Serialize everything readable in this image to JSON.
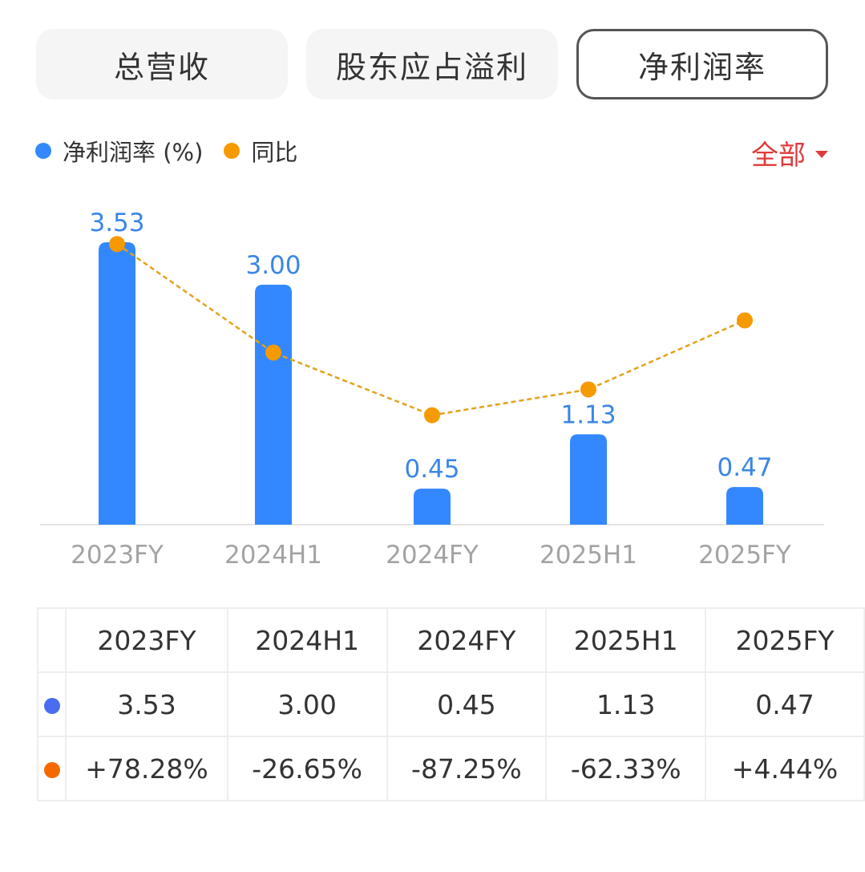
{
  "tabs": [
    {
      "label": "总营收",
      "active": false
    },
    {
      "label": "股东应占溢利",
      "active": false
    },
    {
      "label": "净利润率",
      "active": true
    }
  ],
  "legend": [
    {
      "label": "净利润率 (%)",
      "color": "#3388ff"
    },
    {
      "label": "同比",
      "color": "#f59a00"
    }
  ],
  "filter": {
    "label": "全部",
    "icon": "caret-down-icon"
  },
  "chart_data": {
    "type": "bar",
    "categories": [
      "2023FY",
      "2024H1",
      "2024FY",
      "2025H1",
      "2025FY"
    ],
    "series": [
      {
        "name": "净利润率 (%)",
        "type": "bar",
        "values": [
          3.53,
          3.0,
          0.45,
          1.13,
          0.47
        ],
        "labels": [
          "3.53",
          "3.00",
          "0.45",
          "1.13",
          "0.47"
        ],
        "color": "#3388ff"
      },
      {
        "name": "同比",
        "type": "line",
        "values": [
          78.28,
          -26.65,
          -87.25,
          -62.33,
          4.44
        ],
        "color": "#f59a00",
        "style": "dashed"
      }
    ],
    "ylim": [
      0,
      3.53
    ],
    "grid": false,
    "legend": "top-left"
  },
  "table": {
    "headers": [
      "2023FY",
      "2024H1",
      "2024FY",
      "2025H1",
      "2025FY"
    ],
    "rows": [
      {
        "dot_color": "#4a6cf0",
        "cells": [
          {
            "text": "3.53",
            "tone": ""
          },
          {
            "text": "3.00",
            "tone": ""
          },
          {
            "text": "0.45",
            "tone": ""
          },
          {
            "text": "1.13",
            "tone": ""
          },
          {
            "text": "0.47",
            "tone": ""
          }
        ]
      },
      {
        "dot_color": "#f56a00",
        "cells": [
          {
            "text": "+78.28%",
            "tone": "pos"
          },
          {
            "text": "-26.65%",
            "tone": "neg"
          },
          {
            "text": "-87.25%",
            "tone": "neg"
          },
          {
            "text": "-62.33%",
            "tone": "neg"
          },
          {
            "text": "+4.44%",
            "tone": "pos"
          }
        ]
      }
    ]
  }
}
